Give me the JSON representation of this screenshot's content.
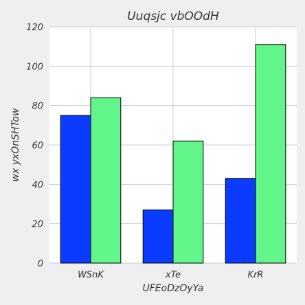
{
  "chart_data": {
    "type": "bar",
    "title": "Uuqsjc vbOOdH",
    "xlabel": "UFEoDzOyYa",
    "ylabel": "wx yxOnSHTow",
    "categories": [
      "WSnK",
      "xTe",
      "KrR"
    ],
    "series": [
      {
        "values": [
          75,
          27,
          43
        ],
        "color": "#0a3bff"
      },
      {
        "values": [
          84,
          62,
          111
        ],
        "color": "#61f58a"
      }
    ],
    "ylim": [
      0,
      120
    ],
    "yticks": [
      0,
      20,
      40,
      60,
      80,
      100,
      120
    ],
    "grid": true,
    "legend": "none",
    "colors": {
      "background": "#efefef",
      "plot_background": "#ffffff",
      "grid": "#cccccc",
      "bar_edge": "#000000",
      "text": "#333333"
    }
  }
}
